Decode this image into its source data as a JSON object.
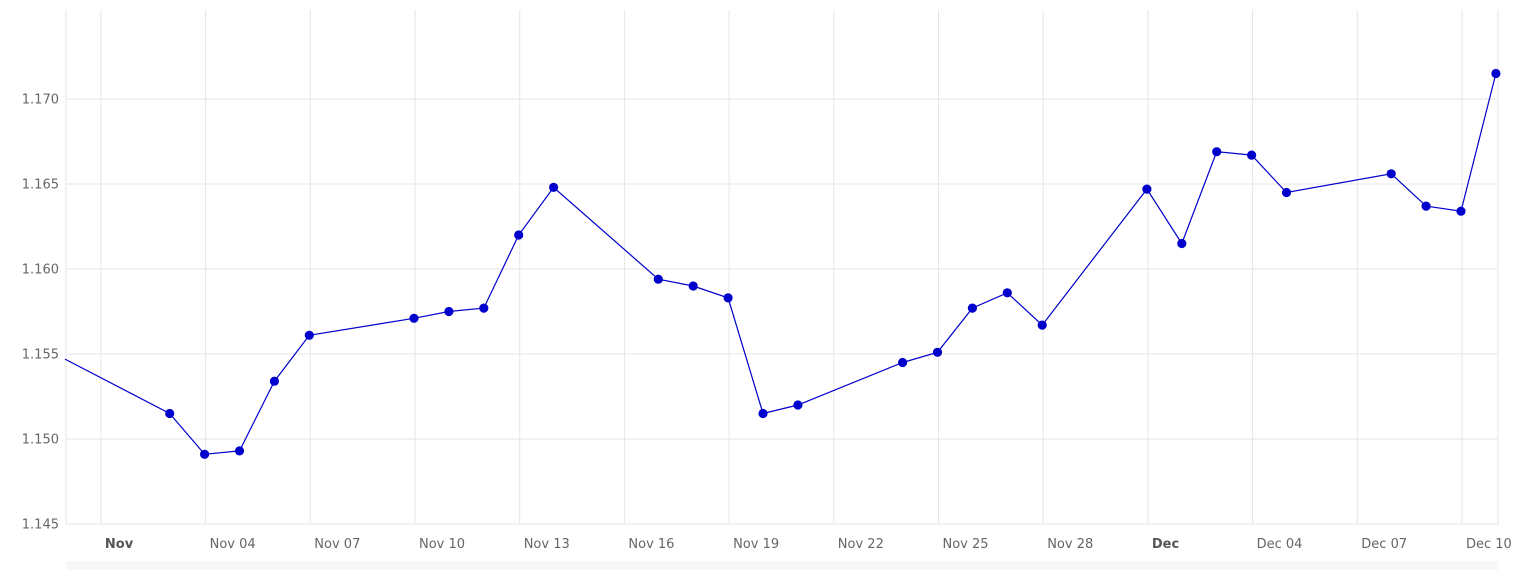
{
  "chart_data": {
    "type": "line",
    "title": "",
    "xlabel": "",
    "ylabel": "",
    "x_domain": [
      "2025-10-31",
      "2025-12-11"
    ],
    "ylim": [
      1.145,
      1.175
    ],
    "yticks": [
      "1.145",
      "1.150",
      "1.155",
      "1.160",
      "1.165",
      "1.170"
    ],
    "xticks": [
      {
        "date": "2025-11-01",
        "label": "Nov",
        "bold": true
      },
      {
        "date": "2025-11-04",
        "label": "Nov 04",
        "bold": false
      },
      {
        "date": "2025-11-07",
        "label": "Nov 07",
        "bold": false
      },
      {
        "date": "2025-11-10",
        "label": "Nov 10",
        "bold": false
      },
      {
        "date": "2025-11-13",
        "label": "Nov 13",
        "bold": false
      },
      {
        "date": "2025-11-16",
        "label": "Nov 16",
        "bold": false
      },
      {
        "date": "2025-11-19",
        "label": "Nov 19",
        "bold": false
      },
      {
        "date": "2025-11-22",
        "label": "Nov 22",
        "bold": false
      },
      {
        "date": "2025-11-25",
        "label": "Nov 25",
        "bold": false
      },
      {
        "date": "2025-11-28",
        "label": "Nov 28",
        "bold": false
      },
      {
        "date": "2025-12-01",
        "label": "Dec",
        "bold": true
      },
      {
        "date": "2025-12-04",
        "label": "Dec 04",
        "bold": false
      },
      {
        "date": "2025-12-07",
        "label": "Dec 07",
        "bold": false
      },
      {
        "date": "2025-12-10",
        "label": "Dec 10",
        "bold": false
      }
    ],
    "grid": true,
    "legend": "none",
    "series": [
      {
        "color": "#0000cc",
        "points": [
          {
            "x": "2025-10-31",
            "y": 1.1547,
            "marker": false
          },
          {
            "x": "2025-11-03",
            "y": 1.1515
          },
          {
            "x": "2025-11-04",
            "y": 1.1491
          },
          {
            "x": "2025-11-05",
            "y": 1.1493
          },
          {
            "x": "2025-11-06",
            "y": 1.1534
          },
          {
            "x": "2025-11-07",
            "y": 1.1561
          },
          {
            "x": "2025-11-10",
            "y": 1.1571
          },
          {
            "x": "2025-11-11",
            "y": 1.1575
          },
          {
            "x": "2025-11-12",
            "y": 1.1577
          },
          {
            "x": "2025-11-13",
            "y": 1.162
          },
          {
            "x": "2025-11-14",
            "y": 1.1648
          },
          {
            "x": "2025-11-17",
            "y": 1.1594
          },
          {
            "x": "2025-11-18",
            "y": 1.159
          },
          {
            "x": "2025-11-19",
            "y": 1.1583
          },
          {
            "x": "2025-11-20",
            "y": 1.1515
          },
          {
            "x": "2025-11-21",
            "y": 1.152
          },
          {
            "x": "2025-11-24",
            "y": 1.1545
          },
          {
            "x": "2025-11-25",
            "y": 1.1551
          },
          {
            "x": "2025-11-26",
            "y": 1.1577
          },
          {
            "x": "2025-11-27",
            "y": 1.1586
          },
          {
            "x": "2025-11-28",
            "y": 1.1567
          },
          {
            "x": "2025-12-01",
            "y": 1.1647
          },
          {
            "x": "2025-12-02",
            "y": 1.1615
          },
          {
            "x": "2025-12-03",
            "y": 1.1669
          },
          {
            "x": "2025-12-04",
            "y": 1.1667
          },
          {
            "x": "2025-12-05",
            "y": 1.1645
          },
          {
            "x": "2025-12-08",
            "y": 1.1656
          },
          {
            "x": "2025-12-09",
            "y": 1.1637
          },
          {
            "x": "2025-12-10",
            "y": 1.1634
          },
          {
            "x": "2025-12-11",
            "y": 1.1715
          }
        ]
      }
    ]
  }
}
